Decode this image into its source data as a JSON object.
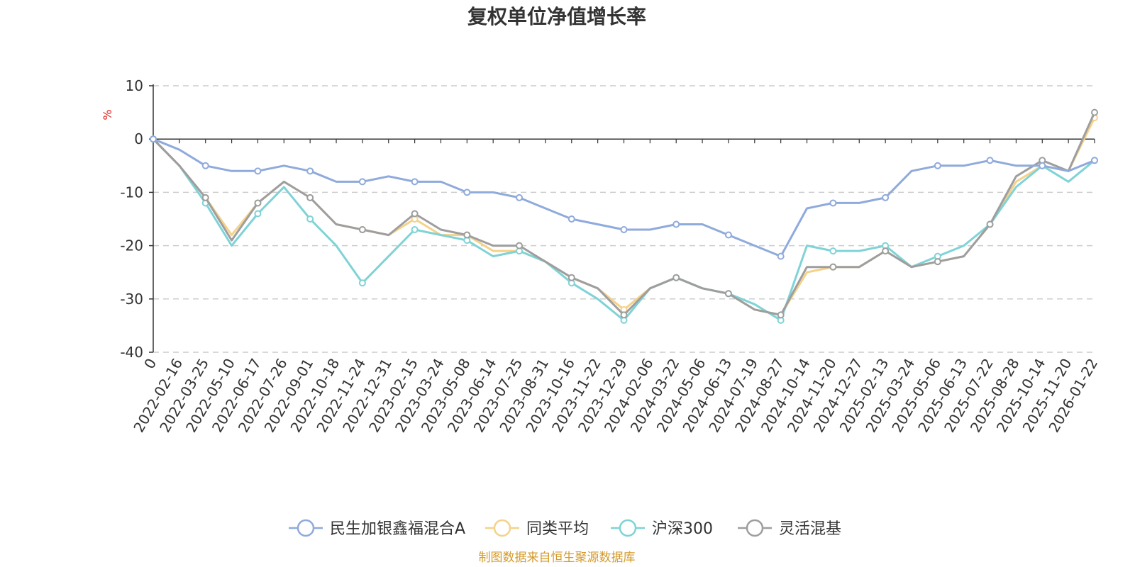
{
  "chart_data": {
    "type": "line",
    "title": "复权单位净值增长率",
    "ylabel": "%",
    "ylim": [
      -40,
      10
    ],
    "yticks": [
      10,
      0,
      -10,
      -20,
      -30,
      -40
    ],
    "grid": true,
    "legend_position": "bottom",
    "x_start_label": "0",
    "x_tick_labels": [
      "2022-02-16",
      "2022-03-25",
      "2022-05-10",
      "2022-06-17",
      "2022-07-26",
      "2022-09-01",
      "2022-10-18",
      "2022-11-24",
      "2022-12-31",
      "2023-02-15",
      "2023-03-24",
      "2023-05-08",
      "2023-06-14",
      "2023-07-25",
      "2023-08-31",
      "2023-10-16",
      "2023-11-22",
      "2023-12-29",
      "2024-02-06",
      "2024-03-22",
      "2024-05-06",
      "2024-06-13",
      "2024-07-19",
      "2024-08-27",
      "2024-10-14",
      "2024-11-20",
      "2024-12-27",
      "2025-02-13",
      "2025-03-24",
      "2025-05-06",
      "2025-06-13",
      "2025-07-22",
      "2025-08-28",
      "2025-10-14",
      "2025-11-20",
      "2026-01-22"
    ],
    "x": [
      "0",
      "2022-02-16",
      "2022-03-25",
      "2022-05-10",
      "2022-06-17",
      "2022-07-26",
      "2022-09-01",
      "2022-10-18",
      "2022-11-24",
      "2022-12-31",
      "2023-02-15",
      "2023-03-24",
      "2023-05-08",
      "2023-06-14",
      "2023-07-25",
      "2023-08-31",
      "2023-10-16",
      "2023-11-22",
      "2023-12-29",
      "2024-02-06",
      "2024-03-22",
      "2024-05-06",
      "2024-06-13",
      "2024-07-19",
      "2024-08-27",
      "2024-10-14",
      "2024-11-20",
      "2024-12-27",
      "2025-02-13",
      "2025-03-24",
      "2025-05-06",
      "2025-06-13",
      "2025-07-22",
      "2025-08-28",
      "2025-10-14",
      "2025-11-20",
      "2026-01-22"
    ],
    "series": [
      {
        "name": "民生加银鑫福混合A",
        "color": "#8faadc",
        "values": [
          0,
          -2,
          -5,
          -6,
          -6,
          -5,
          -6,
          -8,
          -8,
          -7,
          -8,
          -8,
          -10,
          -10,
          -11,
          -13,
          -15,
          -16,
          -17,
          -17,
          -16,
          -16,
          -18,
          -20,
          -22,
          -13,
          -12,
          -12,
          -11,
          -6,
          -5,
          -5,
          -4,
          -5,
          -5,
          -6,
          -4
        ]
      },
      {
        "name": "同类平均",
        "color": "#f5d28a",
        "values": [
          0,
          -5,
          -11,
          -18,
          -12,
          -8,
          -11,
          -16,
          -17,
          -18,
          -15,
          -18,
          -18,
          -21,
          -21,
          -23,
          -26,
          -28,
          -32,
          -28,
          -26,
          -28,
          -29,
          -32,
          -33,
          -25,
          -24,
          -24,
          -21,
          -24,
          -23,
          -22,
          -16,
          -8,
          -5,
          -6,
          4
        ]
      },
      {
        "name": "沪深300",
        "color": "#7fd3d6",
        "values": [
          0,
          -5,
          -12,
          -20,
          -14,
          -9,
          -15,
          -20,
          -27,
          -22,
          -17,
          -18,
          -19,
          -22,
          -21,
          -23,
          -27,
          -30,
          -34,
          -28,
          -26,
          -28,
          -29,
          -31,
          -34,
          -20,
          -21,
          -21,
          -20,
          -24,
          -22,
          -20,
          -16,
          -9,
          -5,
          -8,
          -4
        ]
      },
      {
        "name": "灵活混基",
        "color": "#9e9e9e",
        "values": [
          0,
          -5,
          -11,
          -19,
          -12,
          -8,
          -11,
          -16,
          -17,
          -18,
          -14,
          -17,
          -18,
          -20,
          -20,
          -23,
          -26,
          -28,
          -33,
          -28,
          -26,
          -28,
          -29,
          -32,
          -33,
          -24,
          -24,
          -24,
          -21,
          -24,
          -23,
          -22,
          -16,
          -7,
          -4,
          -6,
          5
        ]
      }
    ]
  },
  "source_text": "制图数据来自恒生聚源数据库",
  "colors": {
    "axis": "#333333",
    "grid": "#cccccc",
    "unit": "#e02020",
    "source": "#d49a2a"
  }
}
